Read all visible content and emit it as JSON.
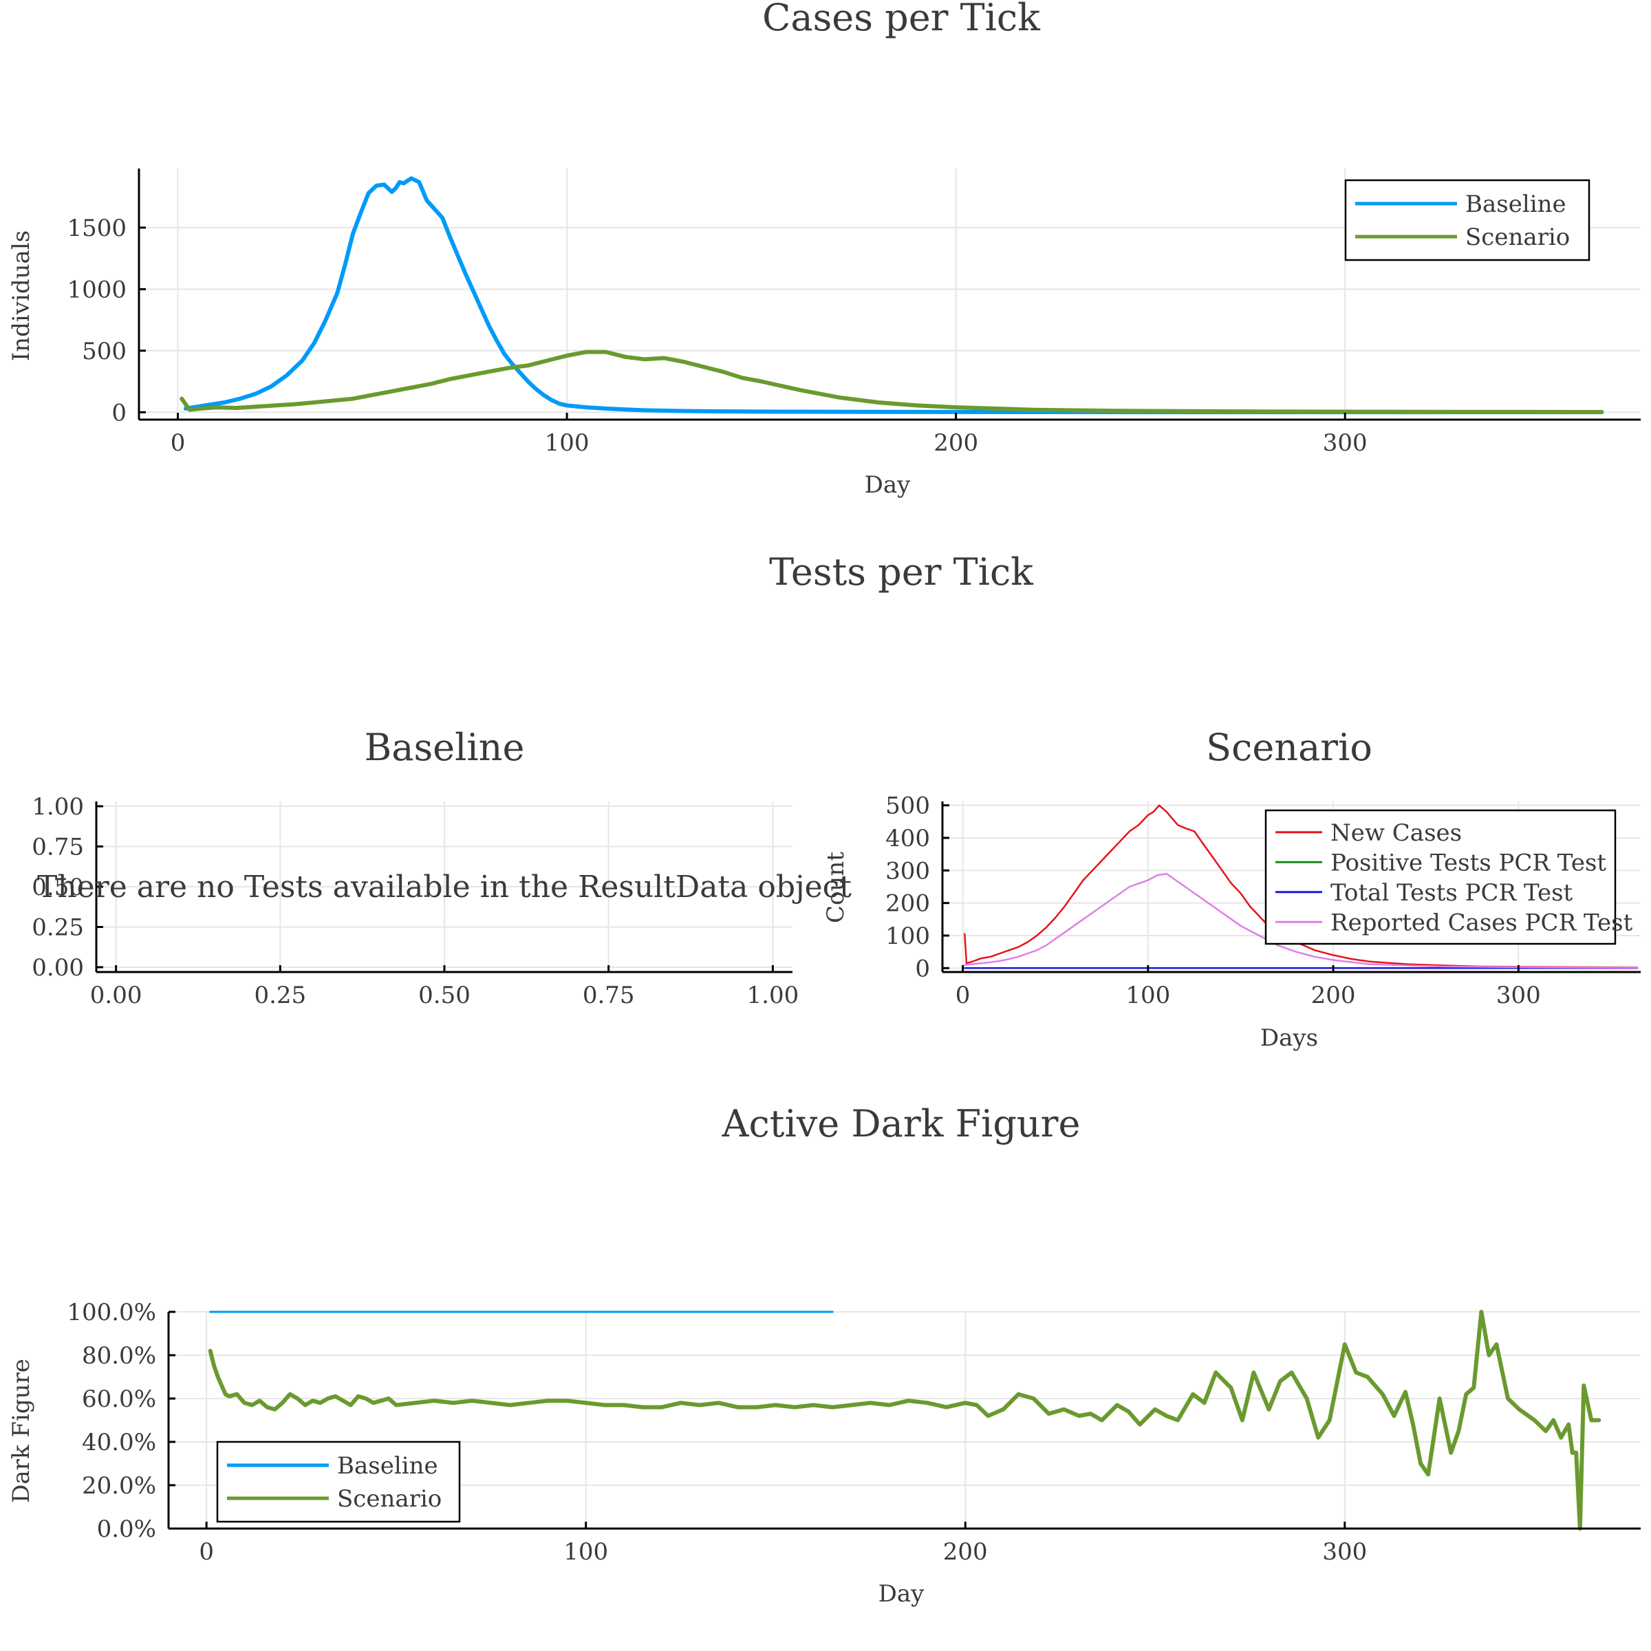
{
  "figure": {
    "section_title": "Tests per Tick"
  },
  "chart_data": [
    {
      "id": "cases",
      "type": "line",
      "title": "Cases per Tick",
      "xlabel": "Day",
      "ylabel": "Individuals",
      "xlim": [
        -10,
        376
      ],
      "ylim": [
        -60,
        1980
      ],
      "xticks": [
        0,
        100,
        200,
        300
      ],
      "xtick_labels": [
        "0",
        "100",
        "200",
        "300"
      ],
      "yticks": [
        0,
        500,
        1000,
        1500
      ],
      "ytick_labels": [
        "0",
        "500",
        "1000",
        "1500"
      ],
      "grid": true,
      "legend_position": "top-right",
      "series": [
        {
          "name": "Baseline",
          "color": "#009af9",
          "width": 6,
          "x": [
            2,
            8,
            12,
            16,
            20,
            24,
            28,
            32,
            35,
            38,
            41,
            43,
            45,
            47,
            49,
            51,
            53,
            55,
            56,
            57,
            58,
            60,
            62,
            64,
            66,
            68,
            70,
            72,
            74,
            76,
            78,
            80,
            82,
            84,
            86,
            88,
            90,
            92,
            94,
            96,
            98,
            100,
            105,
            110,
            115,
            120,
            130,
            140,
            150,
            160,
            180,
            200,
            250,
            300,
            366
          ],
          "values": [
            30,
            60,
            80,
            110,
            150,
            210,
            300,
            420,
            560,
            750,
            970,
            1200,
            1450,
            1620,
            1780,
            1840,
            1850,
            1790,
            1820,
            1870,
            1860,
            1900,
            1870,
            1720,
            1650,
            1580,
            1420,
            1270,
            1120,
            980,
            840,
            700,
            580,
            470,
            390,
            320,
            250,
            190,
            140,
            100,
            70,
            55,
            40,
            30,
            22,
            16,
            10,
            7,
            5,
            4,
            3,
            2,
            1,
            1,
            1
          ]
        },
        {
          "name": "Scenario",
          "color": "#6a9a2f",
          "width": 6,
          "x": [
            1,
            3,
            6,
            10,
            15,
            20,
            25,
            30,
            35,
            40,
            45,
            50,
            55,
            60,
            65,
            70,
            75,
            80,
            85,
            90,
            95,
            100,
            105,
            110,
            115,
            120,
            125,
            130,
            135,
            140,
            145,
            150,
            160,
            170,
            180,
            190,
            200,
            210,
            220,
            240,
            260,
            280,
            300,
            330,
            366
          ],
          "values": [
            110,
            20,
            30,
            40,
            35,
            45,
            55,
            65,
            80,
            95,
            110,
            140,
            170,
            200,
            230,
            270,
            300,
            330,
            360,
            380,
            420,
            460,
            490,
            490,
            450,
            430,
            440,
            410,
            370,
            330,
            280,
            250,
            180,
            120,
            80,
            55,
            40,
            30,
            20,
            12,
            8,
            6,
            4,
            3,
            2
          ]
        }
      ]
    },
    {
      "id": "tests-baseline",
      "type": "line",
      "title": "Baseline",
      "xlabel": "",
      "ylabel": "",
      "xlim": [
        -0.03,
        1.03
      ],
      "ylim": [
        -0.03,
        1.03
      ],
      "xticks": [
        0,
        0.25,
        0.5,
        0.75,
        1
      ],
      "xtick_labels": [
        "0.00",
        "0.25",
        "0.50",
        "0.75",
        "1.00"
      ],
      "yticks": [
        0,
        0.25,
        0.5,
        0.75,
        1
      ],
      "ytick_labels": [
        "0.00",
        "0.25",
        "0.50",
        "0.75",
        "1.00"
      ],
      "grid": true,
      "annotation": "There are no Tests available in the ResultData object",
      "series": []
    },
    {
      "id": "tests-scenario",
      "type": "line",
      "title": "Scenario",
      "xlabel": "Days",
      "ylabel": "Count",
      "xlim": [
        -11,
        366
      ],
      "ylim": [
        -12,
        512
      ],
      "xticks": [
        0,
        100,
        200,
        300
      ],
      "xtick_labels": [
        "0",
        "100",
        "200",
        "300"
      ],
      "yticks": [
        0,
        100,
        200,
        300,
        400,
        500
      ],
      "ytick_labels": [
        "0",
        "100",
        "200",
        "300",
        "400",
        "500"
      ],
      "grid": true,
      "legend_position": "top-right",
      "series": [
        {
          "name": "New Cases",
          "color": "#e5141c",
          "width": 2.5,
          "x": [
            1,
            2,
            5,
            10,
            15,
            20,
            25,
            30,
            35,
            40,
            45,
            50,
            55,
            60,
            65,
            70,
            75,
            80,
            85,
            90,
            95,
            100,
            103,
            106,
            108,
            110,
            113,
            116,
            120,
            125,
            130,
            135,
            140,
            145,
            150,
            155,
            160,
            165,
            170,
            180,
            190,
            200,
            210,
            220,
            240,
            260,
            280,
            300,
            330,
            364
          ],
          "values": [
            105,
            15,
            20,
            30,
            35,
            45,
            55,
            65,
            80,
            100,
            125,
            155,
            190,
            230,
            270,
            300,
            330,
            360,
            390,
            420,
            440,
            470,
            480,
            500,
            490,
            480,
            460,
            440,
            430,
            420,
            380,
            340,
            300,
            260,
            230,
            190,
            160,
            130,
            110,
            80,
            55,
            40,
            28,
            20,
            12,
            8,
            5,
            4,
            3,
            2
          ]
        },
        {
          "name": "Positive Tests PCR Test",
          "color": "#1a8a1a",
          "width": 2.5,
          "x": [
            1,
            364
          ],
          "values": [
            0,
            0
          ]
        },
        {
          "name": "Total Tests PCR Test",
          "color": "#1a1ae0",
          "width": 2.5,
          "x": [
            1,
            364
          ],
          "values": [
            0,
            0
          ]
        },
        {
          "name": "Reported Cases PCR Test",
          "color": "#e07ee8",
          "width": 2.5,
          "x": [
            1,
            5,
            10,
            15,
            20,
            25,
            30,
            35,
            40,
            45,
            50,
            55,
            60,
            65,
            70,
            75,
            80,
            85,
            90,
            95,
            100,
            105,
            110,
            115,
            120,
            125,
            130,
            135,
            140,
            145,
            150,
            160,
            170,
            180,
            190,
            200,
            210,
            220,
            240,
            260,
            280,
            300,
            330,
            364
          ],
          "values": [
            10,
            12,
            15,
            18,
            22,
            28,
            35,
            45,
            55,
            70,
            90,
            110,
            130,
            150,
            170,
            190,
            210,
            230,
            250,
            260,
            270,
            285,
            290,
            270,
            250,
            230,
            210,
            190,
            170,
            150,
            130,
            100,
            70,
            50,
            35,
            25,
            18,
            12,
            8,
            5,
            4,
            3,
            2,
            1
          ]
        }
      ]
    },
    {
      "id": "dark-figure",
      "type": "line",
      "title": "Active Dark Figure",
      "xlabel": "Day",
      "ylabel": "Dark Figure",
      "xlim": [
        -10,
        378
      ],
      "ylim": [
        0,
        1.0
      ],
      "xticks": [
        0,
        100,
        200,
        300
      ],
      "xtick_labels": [
        "0",
        "100",
        "200",
        "300"
      ],
      "yticks": [
        0,
        0.2,
        0.4,
        0.6,
        0.8,
        1.0
      ],
      "ytick_labels": [
        "0.0%",
        "20.0%",
        "40.0%",
        "60.0%",
        "80.0%",
        "100.0%"
      ],
      "grid": true,
      "legend_position": "bottom-left",
      "series": [
        {
          "name": "Baseline",
          "color": "#009af9",
          "width": 3,
          "x": [
            1,
            165
          ],
          "values": [
            1.0,
            1.0
          ]
        },
        {
          "name": "Scenario",
          "color": "#6a9a2f",
          "width": 6,
          "x": [
            1,
            2,
            3,
            4,
            5,
            6,
            8,
            10,
            12,
            14,
            16,
            18,
            20,
            22,
            24,
            26,
            28,
            30,
            32,
            34,
            36,
            38,
            40,
            42,
            44,
            46,
            48,
            50,
            55,
            60,
            65,
            70,
            75,
            80,
            85,
            90,
            95,
            100,
            105,
            110,
            115,
            120,
            125,
            130,
            135,
            140,
            145,
            150,
            155,
            160,
            165,
            170,
            175,
            180,
            185,
            190,
            195,
            200,
            203,
            206,
            210,
            214,
            218,
            222,
            226,
            230,
            233,
            236,
            240,
            243,
            246,
            250,
            253,
            256,
            260,
            263,
            266,
            270,
            273,
            276,
            280,
            283,
            286,
            290,
            293,
            296,
            300,
            303,
            306,
            310,
            313,
            316,
            318,
            320,
            322,
            325,
            328,
            330,
            332,
            334,
            336,
            338,
            340,
            343,
            346,
            350,
            353,
            355,
            357,
            359,
            360,
            361,
            362,
            363,
            365,
            367
          ],
          "values": [
            0.82,
            0.75,
            0.7,
            0.66,
            0.62,
            0.61,
            0.62,
            0.58,
            0.57,
            0.59,
            0.56,
            0.55,
            0.58,
            0.62,
            0.6,
            0.57,
            0.59,
            0.58,
            0.6,
            0.61,
            0.59,
            0.57,
            0.61,
            0.6,
            0.58,
            0.59,
            0.6,
            0.57,
            0.58,
            0.59,
            0.58,
            0.59,
            0.58,
            0.57,
            0.58,
            0.59,
            0.59,
            0.58,
            0.57,
            0.57,
            0.56,
            0.56,
            0.58,
            0.57,
            0.58,
            0.56,
            0.56,
            0.57,
            0.56,
            0.57,
            0.56,
            0.57,
            0.58,
            0.57,
            0.59,
            0.58,
            0.56,
            0.58,
            0.57,
            0.52,
            0.55,
            0.62,
            0.6,
            0.53,
            0.55,
            0.52,
            0.53,
            0.5,
            0.57,
            0.54,
            0.48,
            0.55,
            0.52,
            0.5,
            0.62,
            0.58,
            0.72,
            0.65,
            0.5,
            0.72,
            0.55,
            0.68,
            0.72,
            0.6,
            0.42,
            0.5,
            0.85,
            0.72,
            0.7,
            0.62,
            0.52,
            0.63,
            0.48,
            0.3,
            0.25,
            0.6,
            0.35,
            0.45,
            0.62,
            0.65,
            1.0,
            0.8,
            0.85,
            0.6,
            0.55,
            0.5,
            0.45,
            0.5,
            0.42,
            0.48,
            0.35,
            0.35,
            0.0,
            0.66,
            0.5,
            0.5
          ]
        }
      ]
    }
  ]
}
